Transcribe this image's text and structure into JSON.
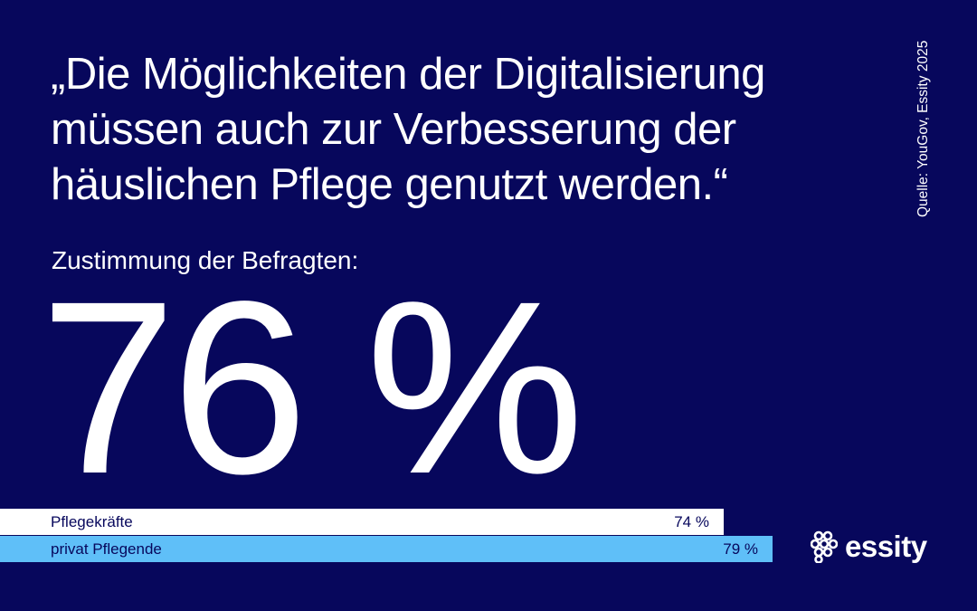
{
  "quote": {
    "lines": [
      "„Die Möglichkeiten der Digitalisierung",
      "müssen auch zur Verbesserung der",
      "häuslichen Pflege genutzt werden.“"
    ]
  },
  "subtitle": "Zustimmung der Befragten:",
  "headline_value": "76 %",
  "source": "Quelle: YouGov, Essity 2025",
  "colors": {
    "background": "#07075c",
    "bar_1": "#ffffff",
    "bar_2": "#5fbff8",
    "text": "#ffffff"
  },
  "chart_data": {
    "type": "bar",
    "orientation": "horizontal",
    "categories": [
      "Pflegekräfte",
      "privat Pflegende"
    ],
    "values": [
      74,
      79
    ],
    "value_labels": [
      "74 %",
      "79 %"
    ],
    "xlim": [
      0,
      100
    ],
    "grid": false
  },
  "logo": {
    "text": "essity",
    "icon": "essity-logo-icon"
  }
}
